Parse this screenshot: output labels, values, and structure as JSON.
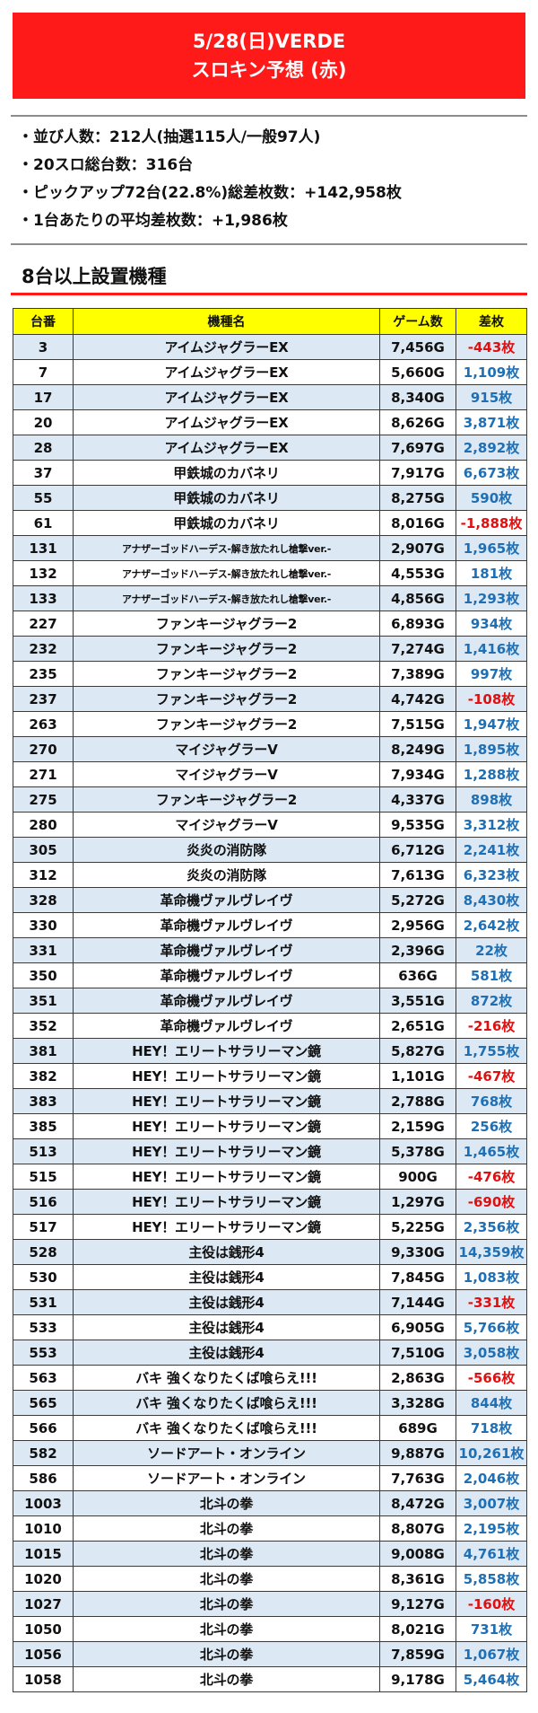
{
  "banner": {
    "line1": "5/28(日)VERDE",
    "line2": "スロキン予想 (赤)"
  },
  "summary": [
    "・並び人数：212人(抽選115人/一般97人)",
    "・20スロ総台数：316台",
    "・ピックアップ72台(22.8%)総差枚数：+142,958枚",
    "・1台あたりの平均差枚数：+1,986枚"
  ],
  "section_title": "8台以上設置機種",
  "table": {
    "headers": [
      "台番",
      "機種名",
      "ゲーム数",
      "差枚"
    ],
    "colors": {
      "header_bg": "#ffff00",
      "stripe": "#dce8f4",
      "positive": "#1f6fb5",
      "negative": "#e01010",
      "banner": "#ff1a1a"
    },
    "rows": [
      [
        "3",
        "アイムジャグラーEX",
        "7,456G",
        "-443枚"
      ],
      [
        "7",
        "アイムジャグラーEX",
        "5,660G",
        "1,109枚"
      ],
      [
        "17",
        "アイムジャグラーEX",
        "8,340G",
        "915枚"
      ],
      [
        "20",
        "アイムジャグラーEX",
        "8,626G",
        "3,871枚"
      ],
      [
        "28",
        "アイムジャグラーEX",
        "7,697G",
        "2,892枚"
      ],
      [
        "37",
        "甲鉄城のカバネリ",
        "7,917G",
        "6,673枚"
      ],
      [
        "55",
        "甲鉄城のカバネリ",
        "8,275G",
        "590枚"
      ],
      [
        "61",
        "甲鉄城のカバネリ",
        "8,016G",
        "-1,888枚"
      ],
      [
        "131",
        "アナザーゴッドハーデス-解き放たれし槍撃ver.-",
        "2,907G",
        "1,965枚"
      ],
      [
        "132",
        "アナザーゴッドハーデス-解き放たれし槍撃ver.-",
        "4,553G",
        "181枚"
      ],
      [
        "133",
        "アナザーゴッドハーデス-解き放たれし槍撃ver.-",
        "4,856G",
        "1,293枚"
      ],
      [
        "227",
        "ファンキージャグラー2",
        "6,893G",
        "934枚"
      ],
      [
        "232",
        "ファンキージャグラー2",
        "7,274G",
        "1,416枚"
      ],
      [
        "235",
        "ファンキージャグラー2",
        "7,389G",
        "997枚"
      ],
      [
        "237",
        "ファンキージャグラー2",
        "4,742G",
        "-108枚"
      ],
      [
        "263",
        "ファンキージャグラー2",
        "7,515G",
        "1,947枚"
      ],
      [
        "270",
        "マイジャグラーV",
        "8,249G",
        "1,895枚"
      ],
      [
        "271",
        "マイジャグラーV",
        "7,934G",
        "1,288枚"
      ],
      [
        "275",
        "ファンキージャグラー2",
        "4,337G",
        "898枚"
      ],
      [
        "280",
        "マイジャグラーV",
        "9,535G",
        "3,312枚"
      ],
      [
        "305",
        "炎炎の消防隊",
        "6,712G",
        "2,241枚"
      ],
      [
        "312",
        "炎炎の消防隊",
        "7,613G",
        "6,323枚"
      ],
      [
        "328",
        "革命機ヴァルヴレイヴ",
        "5,272G",
        "8,430枚"
      ],
      [
        "330",
        "革命機ヴァルヴレイヴ",
        "2,956G",
        "2,642枚"
      ],
      [
        "331",
        "革命機ヴァルヴレイヴ",
        "2,396G",
        "22枚"
      ],
      [
        "350",
        "革命機ヴァルヴレイヴ",
        "636G",
        "581枚"
      ],
      [
        "351",
        "革命機ヴァルヴレイヴ",
        "3,551G",
        "872枚"
      ],
      [
        "352",
        "革命機ヴァルヴレイヴ",
        "2,651G",
        "-216枚"
      ],
      [
        "381",
        "HEY！エリートサラリーマン鏡",
        "5,827G",
        "1,755枚"
      ],
      [
        "382",
        "HEY！エリートサラリーマン鏡",
        "1,101G",
        "-467枚"
      ],
      [
        "383",
        "HEY！エリートサラリーマン鏡",
        "2,788G",
        "768枚"
      ],
      [
        "385",
        "HEY！エリートサラリーマン鏡",
        "2,159G",
        "256枚"
      ],
      [
        "513",
        "HEY！エリートサラリーマン鏡",
        "5,378G",
        "1,465枚"
      ],
      [
        "515",
        "HEY！エリートサラリーマン鏡",
        "900G",
        "-476枚"
      ],
      [
        "516",
        "HEY！エリートサラリーマン鏡",
        "1,297G",
        "-690枚"
      ],
      [
        "517",
        "HEY！エリートサラリーマン鏡",
        "5,225G",
        "2,356枚"
      ],
      [
        "528",
        "主役は銭形4",
        "9,330G",
        "14,359枚"
      ],
      [
        "530",
        "主役は銭形4",
        "7,845G",
        "1,083枚"
      ],
      [
        "531",
        "主役は銭形4",
        "7,144G",
        "-331枚"
      ],
      [
        "533",
        "主役は銭形4",
        "6,905G",
        "5,766枚"
      ],
      [
        "553",
        "主役は銭形4",
        "7,510G",
        "3,058枚"
      ],
      [
        "563",
        "バキ 強くなりたくば喰らえ!!!",
        "2,863G",
        "-566枚"
      ],
      [
        "565",
        "バキ 強くなりたくば喰らえ!!!",
        "3,328G",
        "844枚"
      ],
      [
        "566",
        "バキ 強くなりたくば喰らえ!!!",
        "689G",
        "718枚"
      ],
      [
        "582",
        "ソードアート・オンライン",
        "9,887G",
        "10,261枚"
      ],
      [
        "586",
        "ソードアート・オンライン",
        "7,763G",
        "2,046枚"
      ],
      [
        "1003",
        "北斗の拳",
        "8,472G",
        "3,007枚"
      ],
      [
        "1010",
        "北斗の拳",
        "8,807G",
        "2,195枚"
      ],
      [
        "1015",
        "北斗の拳",
        "9,008G",
        "4,761枚"
      ],
      [
        "1020",
        "北斗の拳",
        "8,361G",
        "5,858枚"
      ],
      [
        "1027",
        "北斗の拳",
        "9,127G",
        "-160枚"
      ],
      [
        "1050",
        "北斗の拳",
        "8,021G",
        "731枚"
      ],
      [
        "1056",
        "北斗の拳",
        "7,859G",
        "1,067枚"
      ],
      [
        "1058",
        "北斗の拳",
        "9,178G",
        "5,464枚"
      ]
    ]
  }
}
